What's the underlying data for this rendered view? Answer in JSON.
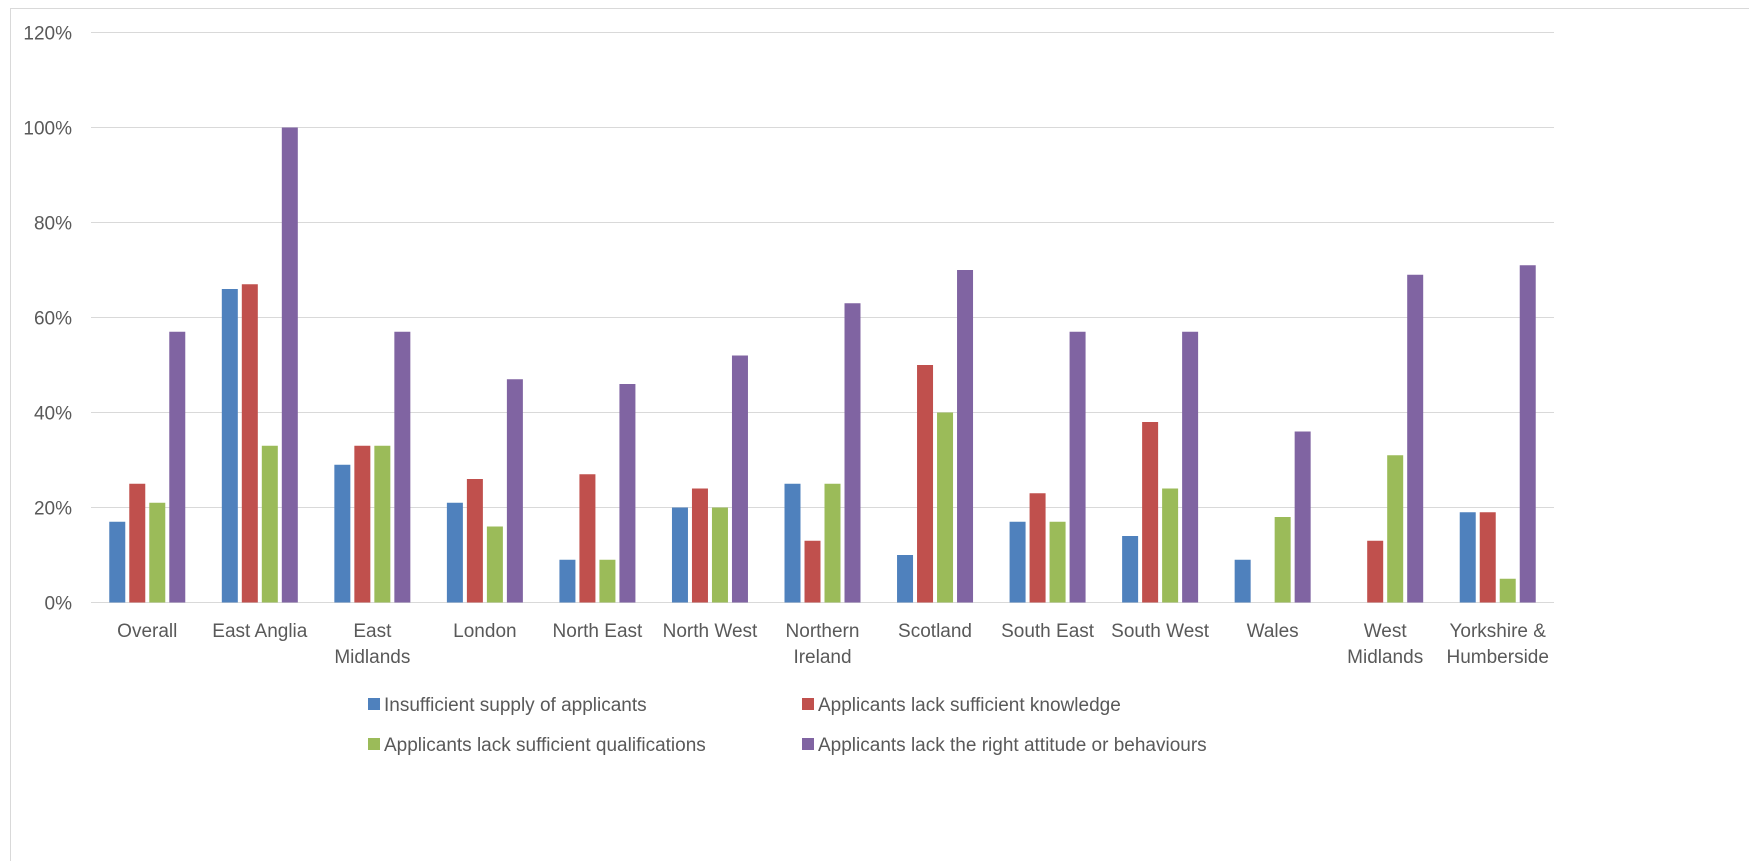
{
  "chart_data": {
    "type": "bar",
    "categories": [
      [
        "Overall"
      ],
      [
        "East Anglia"
      ],
      [
        "East",
        "Midlands"
      ],
      [
        "London"
      ],
      [
        "North East"
      ],
      [
        "North West"
      ],
      [
        "Northern",
        "Ireland"
      ],
      [
        "Scotland"
      ],
      [
        "South East"
      ],
      [
        "South West"
      ],
      [
        "Wales"
      ],
      [
        "West",
        "Midlands"
      ],
      [
        "Yorkshire &",
        "Humberside"
      ]
    ],
    "series": [
      {
        "name": "Insufficient supply of applicants",
        "color": "#4f81bd",
        "values": [
          17,
          66,
          29,
          21,
          9,
          20,
          25,
          10,
          17,
          14,
          9,
          0,
          19
        ]
      },
      {
        "name": "Applicants lack sufficient knowledge",
        "color": "#c0504d",
        "values": [
          25,
          67,
          33,
          26,
          27,
          24,
          13,
          50,
          23,
          38,
          0,
          13,
          19
        ]
      },
      {
        "name": "Applicants lack sufficient qualifications",
        "color": "#9bbb59",
        "values": [
          21,
          33,
          33,
          16,
          9,
          20,
          25,
          40,
          17,
          24,
          18,
          31,
          5
        ]
      },
      {
        "name": "Applicants lack the right attitude or behaviours",
        "color": "#8064a2",
        "values": [
          57,
          100,
          57,
          47,
          46,
          52,
          63,
          70,
          57,
          57,
          36,
          69,
          71
        ]
      }
    ],
    "y_ticks": [
      "0%",
      "20%",
      "40%",
      "60%",
      "80%",
      "100%",
      "120%"
    ],
    "ylim": [
      0,
      120
    ],
    "y_unit": "%",
    "grid": true,
    "legend_position": "bottom"
  }
}
